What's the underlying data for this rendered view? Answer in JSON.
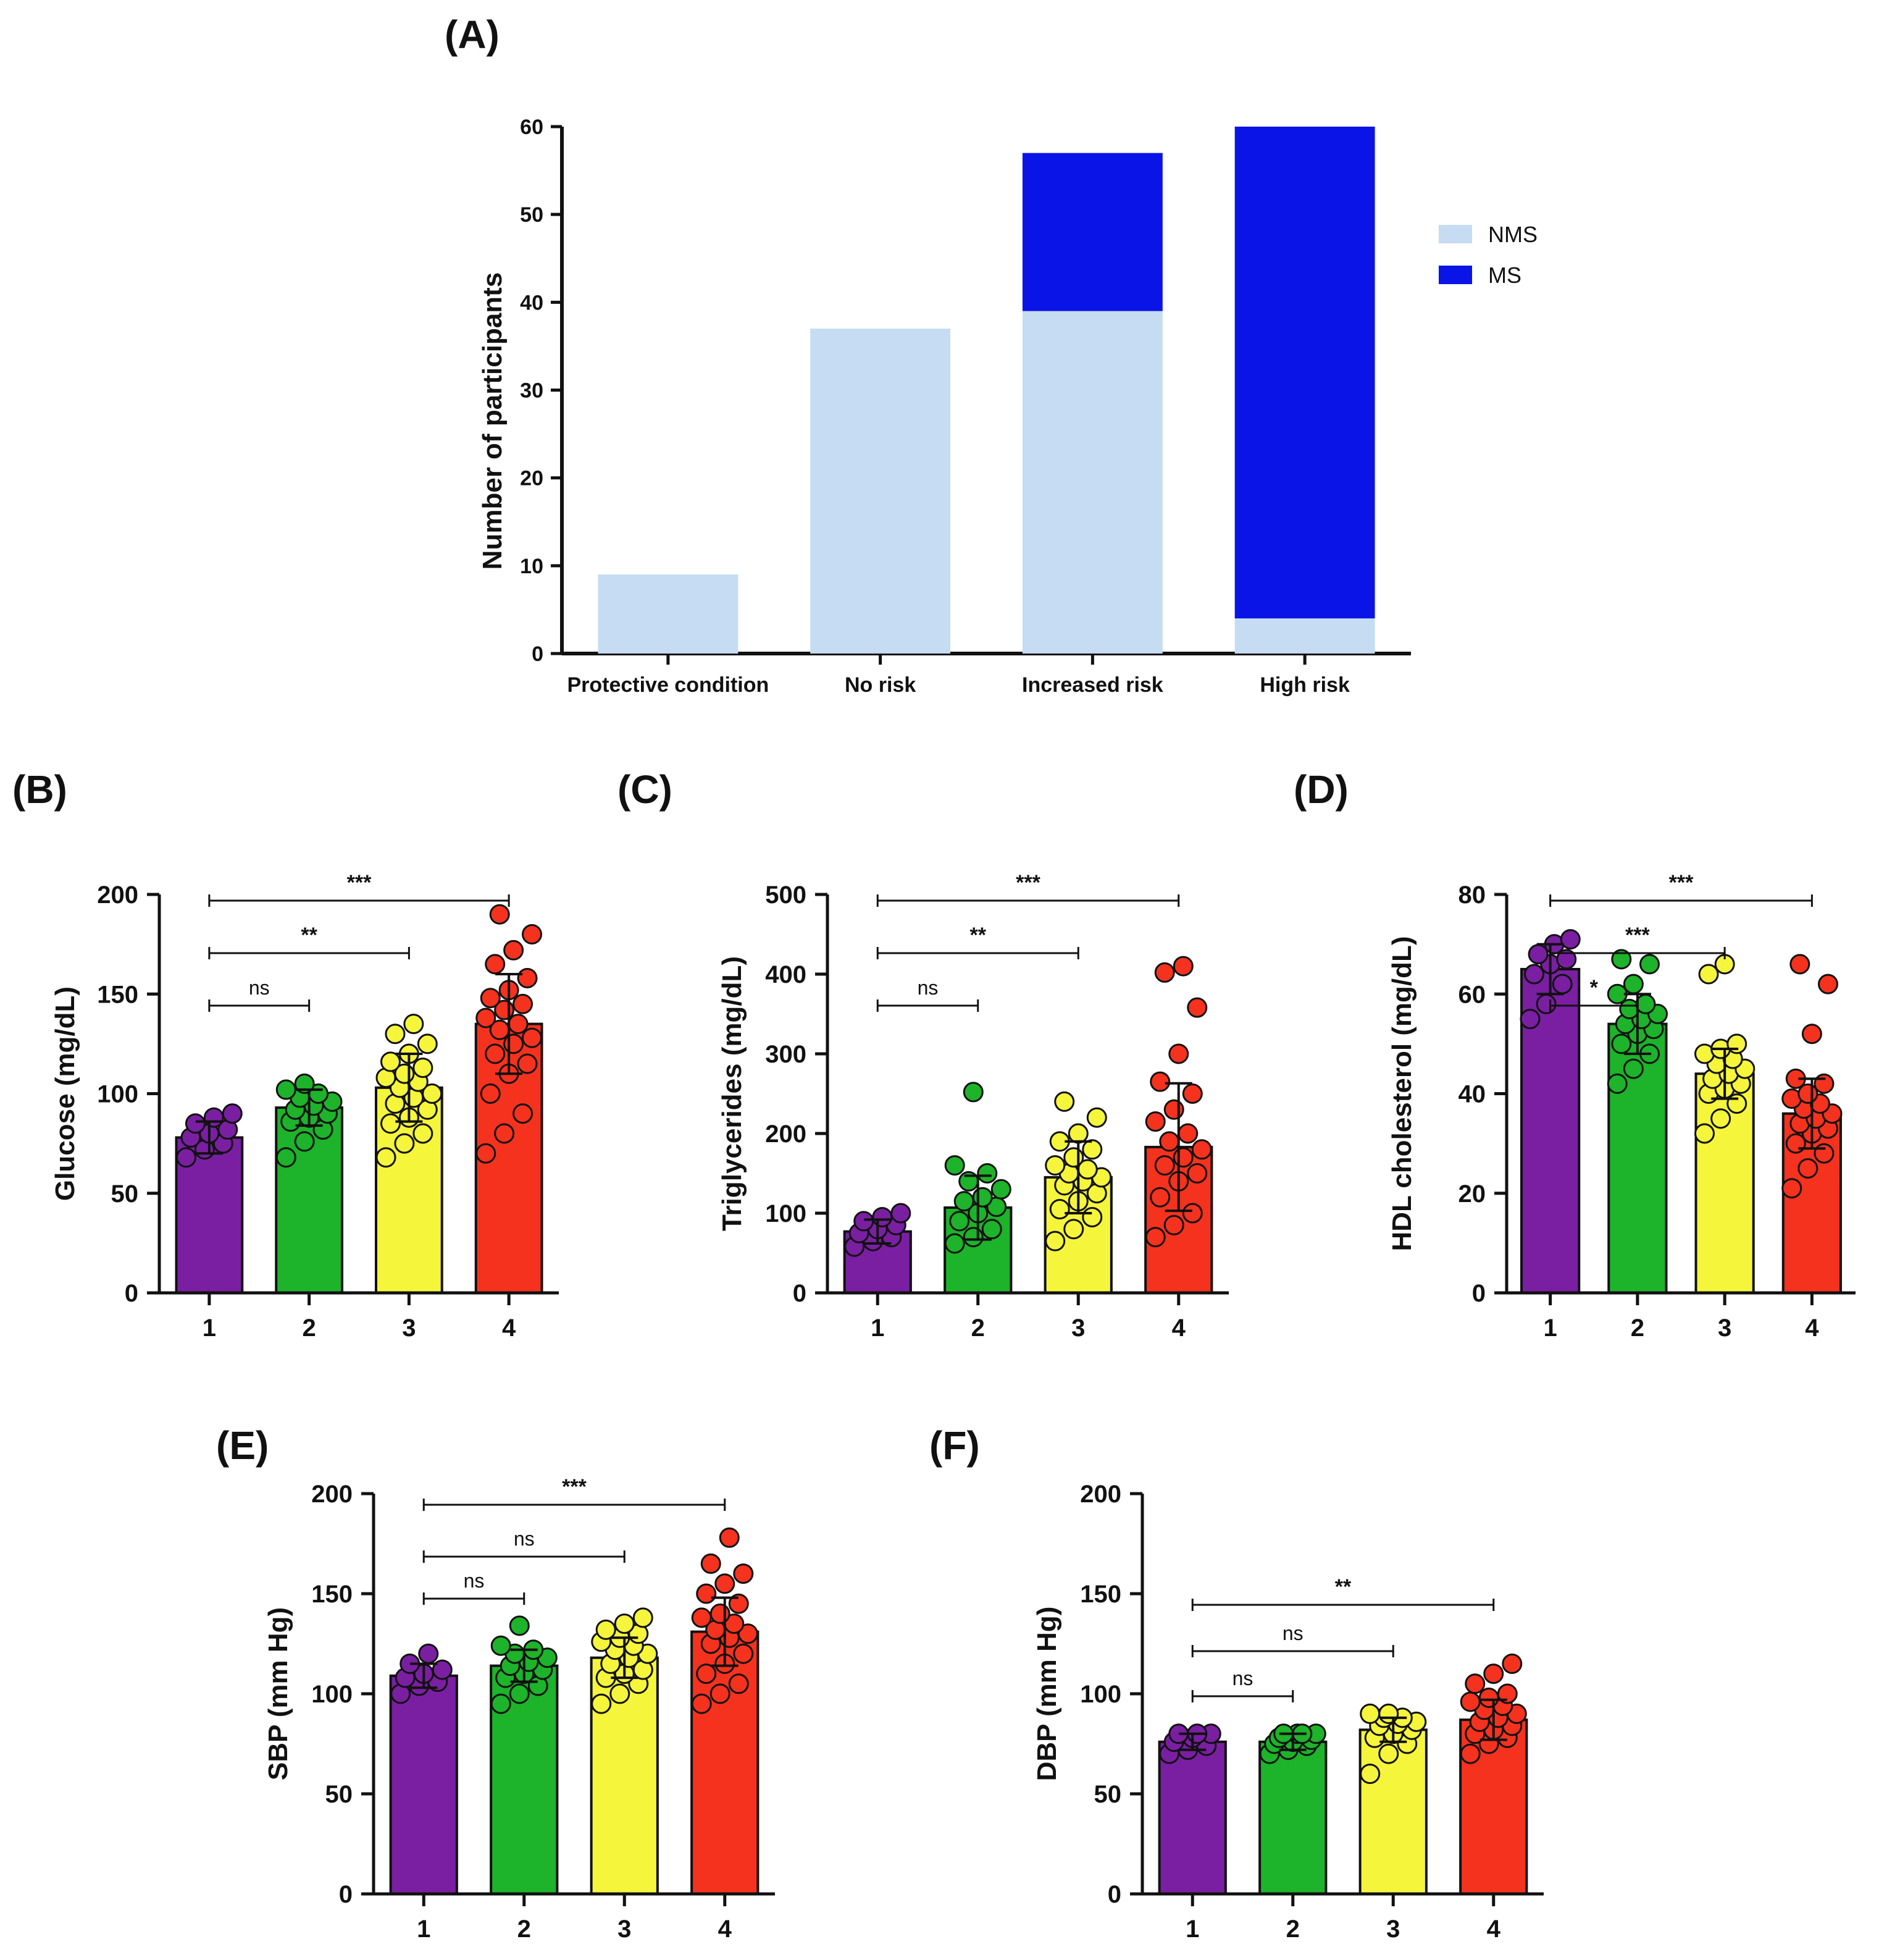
{
  "chart_data": [
    {
      "panel": "(A)",
      "type": "bar",
      "stacked": true,
      "categories": [
        "Protective condition",
        "No risk",
        "Increased risk",
        "High risk"
      ],
      "series": [
        {
          "name": "NMS",
          "color": "#c5dcf2",
          "values": [
            9,
            37,
            39,
            4
          ]
        },
        {
          "name": "MS",
          "color": "#0a14e6",
          "values": [
            0,
            0,
            18,
            56
          ]
        }
      ],
      "ylabel": "Number of participants",
      "ylim": [
        0,
        60
      ],
      "yticks": [
        0,
        10,
        20,
        30,
        40,
        50,
        60
      ],
      "legend": "right"
    },
    {
      "panel": "(B)",
      "type": "bar",
      "categories": [
        "1",
        "2",
        "3",
        "4"
      ],
      "colors": [
        "#7a1fa2",
        "#1db32a",
        "#f5f53c",
        "#f5321e"
      ],
      "values": [
        78,
        93,
        103,
        135
      ],
      "sd": [
        8,
        9,
        17,
        25
      ],
      "points": [
        [
          68,
          72,
          75,
          78,
          80,
          82,
          85,
          88,
          90
        ],
        [
          68,
          76,
          82,
          86,
          88,
          90,
          92,
          94,
          96,
          98,
          100,
          102,
          105
        ],
        [
          68,
          75,
          80,
          85,
          88,
          92,
          95,
          98,
          100,
          103,
          106,
          108,
          110,
          113,
          116,
          120,
          125,
          130,
          135
        ],
        [
          70,
          80,
          90,
          100,
          110,
          115,
          120,
          125,
          128,
          132,
          135,
          138,
          142,
          145,
          148,
          152,
          158,
          165,
          172,
          180,
          190
        ]
      ],
      "ylabel": "Glucose (mg/dL)",
      "ylim": [
        0,
        200
      ],
      "yticks": [
        0,
        50,
        100,
        150,
        200
      ],
      "comparisons": [
        {
          "from": 1,
          "to": 2,
          "label": "ns"
        },
        {
          "from": 1,
          "to": 3,
          "label": "**"
        },
        {
          "from": 1,
          "to": 4,
          "label": "***"
        }
      ]
    },
    {
      "panel": "(C)",
      "type": "bar",
      "categories": [
        "1",
        "2",
        "3",
        "4"
      ],
      "colors": [
        "#7a1fa2",
        "#1db32a",
        "#f5f53c",
        "#f5321e"
      ],
      "values": [
        77,
        107,
        145,
        183
      ],
      "sd": [
        15,
        40,
        45,
        80
      ],
      "points": [
        [
          58,
          65,
          70,
          75,
          80,
          85,
          90,
          95,
          100
        ],
        [
          62,
          70,
          80,
          90,
          100,
          108,
          115,
          120,
          130,
          140,
          150,
          160,
          252
        ],
        [
          65,
          80,
          95,
          105,
          115,
          125,
          135,
          140,
          145,
          150,
          155,
          160,
          170,
          180,
          190,
          200,
          220,
          240
        ],
        [
          70,
          85,
          100,
          120,
          140,
          150,
          160,
          170,
          180,
          190,
          200,
          215,
          230,
          250,
          265,
          300,
          358,
          402,
          410
        ]
      ],
      "ylabel": "Triglycerides (mg/dL)",
      "ylim": [
        0,
        500
      ],
      "yticks": [
        0,
        100,
        200,
        300,
        400,
        500
      ],
      "comparisons": [
        {
          "from": 1,
          "to": 2,
          "label": "ns"
        },
        {
          "from": 1,
          "to": 3,
          "label": "**"
        },
        {
          "from": 1,
          "to": 4,
          "label": "***"
        }
      ]
    },
    {
      "panel": "(D)",
      "type": "bar",
      "categories": [
        "1",
        "2",
        "3",
        "4"
      ],
      "colors": [
        "#7a1fa2",
        "#1db32a",
        "#f5f53c",
        "#f5321e"
      ],
      "values": [
        65,
        54,
        44,
        36
      ],
      "sd": [
        5,
        6,
        5,
        7
      ],
      "points": [
        [
          55,
          58,
          62,
          64,
          66,
          67,
          68,
          70,
          71
        ],
        [
          42,
          45,
          48,
          50,
          52,
          53,
          54,
          55,
          56,
          57,
          58,
          60,
          62,
          66,
          67
        ],
        [
          32,
          35,
          38,
          40,
          41,
          42,
          43,
          44,
          45,
          46,
          47,
          48,
          49,
          50,
          64,
          66
        ],
        [
          21,
          25,
          28,
          30,
          32,
          33,
          34,
          35,
          36,
          37,
          38,
          39,
          40,
          42,
          43,
          52,
          62,
          66
        ]
      ],
      "ylabel": "HDL cholesterol (mg/dL)",
      "ylim": [
        0,
        80
      ],
      "yticks": [
        0,
        20,
        40,
        60,
        80
      ],
      "comparisons": [
        {
          "from": 1,
          "to": 2,
          "label": "*"
        },
        {
          "from": 1,
          "to": 3,
          "label": "***"
        },
        {
          "from": 1,
          "to": 4,
          "label": "***"
        }
      ]
    },
    {
      "panel": "(E)",
      "type": "bar",
      "categories": [
        "1",
        "2",
        "3",
        "4"
      ],
      "colors": [
        "#7a1fa2",
        "#1db32a",
        "#f5f53c",
        "#f5321e"
      ],
      "values": [
        109,
        114,
        118,
        131
      ],
      "sd": [
        6,
        8,
        10,
        17
      ],
      "points": [
        [
          100,
          104,
          106,
          108,
          110,
          112,
          115,
          120
        ],
        [
          95,
          100,
          104,
          108,
          110,
          112,
          114,
          116,
          118,
          120,
          122,
          124,
          134
        ],
        [
          95,
          100,
          105,
          108,
          110,
          112,
          115,
          118,
          120,
          122,
          124,
          126,
          128,
          130,
          132,
          135,
          138
        ],
        [
          95,
          100,
          105,
          110,
          115,
          120,
          125,
          128,
          130,
          132,
          135,
          138,
          140,
          145,
          150,
          155,
          160,
          165,
          178
        ]
      ],
      "ylabel": "SBP (mm Hg)",
      "ylim": [
        0,
        200
      ],
      "yticks": [
        0,
        50,
        100,
        150,
        200
      ],
      "comparisons": [
        {
          "from": 1,
          "to": 2,
          "label": "ns"
        },
        {
          "from": 1,
          "to": 3,
          "label": "ns"
        },
        {
          "from": 1,
          "to": 4,
          "label": "***"
        }
      ]
    },
    {
      "panel": "(F)",
      "type": "bar",
      "categories": [
        "1",
        "2",
        "3",
        "4"
      ],
      "colors": [
        "#7a1fa2",
        "#1db32a",
        "#f5f53c",
        "#f5321e"
      ],
      "values": [
        76,
        76,
        82,
        87
      ],
      "sd": [
        4,
        4,
        6,
        10
      ],
      "points": [
        [
          70,
          72,
          74,
          76,
          78,
          80,
          80,
          80
        ],
        [
          70,
          72,
          74,
          75,
          76,
          77,
          78,
          80,
          80,
          80,
          80
        ],
        [
          60,
          70,
          75,
          78,
          80,
          82,
          84,
          85,
          86,
          88,
          88,
          90,
          90
        ],
        [
          70,
          75,
          78,
          80,
          82,
          84,
          86,
          88,
          90,
          92,
          94,
          96,
          98,
          100,
          105,
          110,
          115
        ]
      ],
      "ylabel": "DBP (mm Hg)",
      "ylim": [
        0,
        200
      ],
      "yticks": [
        0,
        50,
        100,
        150,
        200
      ],
      "comparisons": [
        {
          "from": 1,
          "to": 2,
          "label": "ns"
        },
        {
          "from": 1,
          "to": 3,
          "label": "ns"
        },
        {
          "from": 1,
          "to": 4,
          "label": "**"
        }
      ]
    }
  ]
}
